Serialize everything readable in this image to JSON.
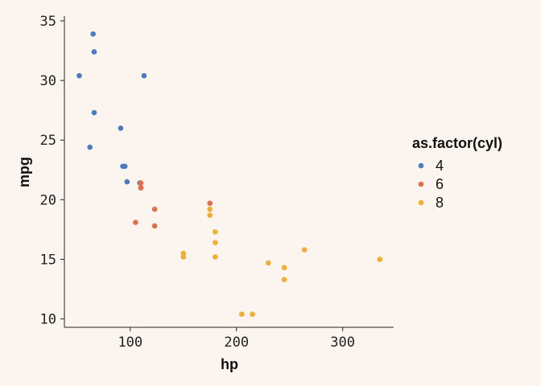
{
  "chart_data": {
    "type": "scatter",
    "title": "",
    "xlabel": "hp",
    "ylabel": "mpg",
    "xlim": [
      38,
      348
    ],
    "ylim": [
      9.3,
      35.4
    ],
    "x_ticks": [
      100,
      200,
      300
    ],
    "y_ticks": [
      10,
      15,
      20,
      25,
      30,
      35
    ],
    "grid": false,
    "legend": {
      "title": "as.factor(cyl)",
      "placement": "right"
    },
    "series": [
      {
        "name": "4",
        "color": "#4a7bbf",
        "points": [
          {
            "x": 52,
            "y": 30.4
          },
          {
            "x": 65,
            "y": 33.9
          },
          {
            "x": 66,
            "y": 32.4
          },
          {
            "x": 66,
            "y": 27.3
          },
          {
            "x": 62,
            "y": 24.4
          },
          {
            "x": 91,
            "y": 26.0
          },
          {
            "x": 93,
            "y": 22.8
          },
          {
            "x": 95,
            "y": 22.8
          },
          {
            "x": 97,
            "y": 21.5
          },
          {
            "x": 109,
            "y": 21.4
          },
          {
            "x": 113,
            "y": 30.4
          }
        ]
      },
      {
        "name": "6",
        "color": "#e36e4c",
        "points": [
          {
            "x": 105,
            "y": 18.1
          },
          {
            "x": 110,
            "y": 21.0
          },
          {
            "x": 110,
            "y": 21.0
          },
          {
            "x": 110,
            "y": 21.4
          },
          {
            "x": 123,
            "y": 19.2
          },
          {
            "x": 123,
            "y": 17.8
          },
          {
            "x": 175,
            "y": 19.7
          }
        ]
      },
      {
        "name": "8",
        "color": "#f2ad35",
        "points": [
          {
            "x": 150,
            "y": 15.5
          },
          {
            "x": 150,
            "y": 15.2
          },
          {
            "x": 175,
            "y": 19.2
          },
          {
            "x": 175,
            "y": 18.7
          },
          {
            "x": 180,
            "y": 17.3
          },
          {
            "x": 180,
            "y": 16.4
          },
          {
            "x": 180,
            "y": 15.2
          },
          {
            "x": 205,
            "y": 10.4
          },
          {
            "x": 215,
            "y": 10.4
          },
          {
            "x": 230,
            "y": 14.7
          },
          {
            "x": 245,
            "y": 14.3
          },
          {
            "x": 245,
            "y": 13.3
          },
          {
            "x": 264,
            "y": 15.8
          },
          {
            "x": 335,
            "y": 15.0
          }
        ]
      }
    ]
  }
}
